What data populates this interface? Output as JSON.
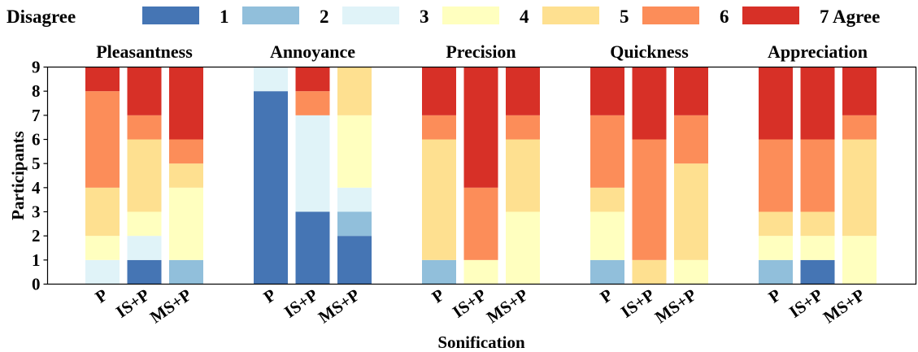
{
  "chart_data": {
    "type": "bar",
    "stacked": true,
    "legend": {
      "placement": "top",
      "title": "Disagree",
      "entries": [
        "1",
        "2",
        "3",
        "4",
        "5",
        "6",
        "7  Agree"
      ]
    },
    "levels": [
      1,
      2,
      3,
      4,
      5,
      6,
      7
    ],
    "colors": [
      "#4575b4",
      "#91bfdb",
      "#e0f3f8",
      "#ffffbf",
      "#fee090",
      "#fc8d59",
      "#d73027"
    ],
    "xlabel": "Sonification",
    "ylabel": "Participants",
    "ylim": [
      0,
      9
    ],
    "yticks": [
      "0",
      "1",
      "2",
      "3",
      "4",
      "5",
      "6",
      "7",
      "8",
      "9"
    ],
    "categories": [
      "P",
      "IS+P",
      "MS+P"
    ],
    "panels": [
      {
        "title": "Pleasantness",
        "bars": [
          {
            "label": "P",
            "counts": [
              0,
              0,
              1,
              1,
              2,
              4,
              1
            ]
          },
          {
            "label": "IS+P",
            "counts": [
              1,
              0,
              1,
              1,
              3,
              1,
              2
            ]
          },
          {
            "label": "MS+P",
            "counts": [
              0,
              1,
              0,
              3,
              1,
              1,
              3
            ]
          }
        ]
      },
      {
        "title": "Annoyance",
        "bars": [
          {
            "label": "P",
            "counts": [
              8,
              0,
              1,
              0,
              0,
              0,
              0
            ]
          },
          {
            "label": "IS+P",
            "counts": [
              3,
              0,
              4,
              0,
              0,
              1,
              1
            ]
          },
          {
            "label": "MS+P",
            "counts": [
              2,
              1,
              1,
              3,
              2,
              0,
              0
            ]
          }
        ]
      },
      {
        "title": "Precision",
        "bars": [
          {
            "label": "P",
            "counts": [
              0,
              1,
              0,
              0,
              5,
              1,
              2
            ]
          },
          {
            "label": "IS+P",
            "counts": [
              0,
              0,
              0,
              1,
              0,
              3,
              5
            ]
          },
          {
            "label": "MS+P",
            "counts": [
              0,
              0,
              0,
              3,
              3,
              1,
              2
            ]
          }
        ]
      },
      {
        "title": "Quickness",
        "bars": [
          {
            "label": "P",
            "counts": [
              0,
              1,
              0,
              2,
              1,
              3,
              2
            ]
          },
          {
            "label": "IS+P",
            "counts": [
              0,
              0,
              0,
              0,
              1,
              5,
              3
            ]
          },
          {
            "label": "MS+P",
            "counts": [
              0,
              0,
              0,
              1,
              4,
              2,
              2
            ]
          }
        ]
      },
      {
        "title": "Appreciation",
        "bars": [
          {
            "label": "P",
            "counts": [
              0,
              1,
              0,
              1,
              1,
              3,
              3
            ]
          },
          {
            "label": "IS+P",
            "counts": [
              1,
              0,
              0,
              1,
              1,
              3,
              3
            ]
          },
          {
            "label": "MS+P",
            "counts": [
              0,
              0,
              0,
              2,
              4,
              1,
              2
            ]
          }
        ]
      }
    ]
  }
}
